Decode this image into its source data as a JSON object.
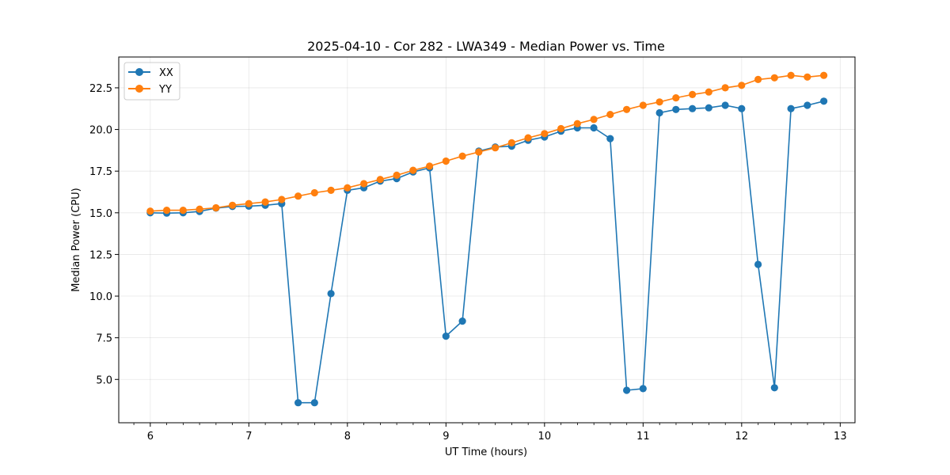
{
  "chart_data": {
    "type": "line",
    "title": "2025-04-10 - Cor 282 - LWA349 - Median Power vs. Time",
    "xlabel": "UT Time (hours)",
    "ylabel": "Median Power (CPU)",
    "xlim": [
      5.68,
      13.15
    ],
    "ylim": [
      2.4,
      24.35
    ],
    "xticks": [
      6,
      7,
      8,
      9,
      10,
      11,
      12,
      13
    ],
    "xtick_labels": [
      "6",
      "7",
      "8",
      "9",
      "10",
      "11",
      "12",
      "13"
    ],
    "xminor_step": 0.1667,
    "yticks": [
      5.0,
      7.5,
      10.0,
      12.5,
      15.0,
      17.5,
      20.0,
      22.5
    ],
    "ytick_labels": [
      "5.0",
      "7.5",
      "10.0",
      "12.5",
      "15.0",
      "17.5",
      "20.0",
      "22.5"
    ],
    "grid": true,
    "legend_position": "top-left",
    "x": [
      6.0,
      6.1667,
      6.3333,
      6.5,
      6.6667,
      6.8333,
      7.0,
      7.1667,
      7.3333,
      7.5,
      7.6667,
      7.8333,
      8.0,
      8.1667,
      8.3333,
      8.5,
      8.6667,
      8.8333,
      9.0,
      9.1667,
      9.3333,
      9.5,
      9.6667,
      9.8333,
      10.0,
      10.1667,
      10.3333,
      10.5,
      10.6667,
      10.8333,
      11.0,
      11.1667,
      11.3333,
      11.5,
      11.6667,
      11.8333,
      12.0,
      12.1667,
      12.3333,
      12.5,
      12.6667,
      12.8333
    ],
    "series": [
      {
        "name": "XX",
        "color": "#1f77b4",
        "values": [
          15.0,
          14.98,
          15.0,
          15.08,
          15.28,
          15.38,
          15.4,
          15.45,
          15.55,
          3.6,
          3.6,
          10.15,
          16.35,
          16.5,
          16.9,
          17.05,
          17.45,
          17.7,
          7.6,
          8.5,
          18.7,
          18.95,
          19.0,
          19.35,
          19.55,
          19.9,
          20.1,
          20.1,
          19.45,
          4.35,
          4.45,
          21.0,
          21.2,
          21.25,
          21.3,
          21.45,
          21.25,
          11.9,
          4.5,
          21.25,
          21.45,
          21.7
        ]
      },
      {
        "name": "YY",
        "color": "#ff7f0e",
        "values": [
          15.1,
          15.15,
          15.15,
          15.22,
          15.3,
          15.45,
          15.55,
          15.65,
          15.8,
          16.0,
          16.2,
          16.35,
          16.5,
          16.75,
          17.0,
          17.25,
          17.55,
          17.8,
          18.1,
          18.4,
          18.65,
          18.9,
          19.2,
          19.5,
          19.75,
          20.05,
          20.35,
          20.6,
          20.9,
          21.2,
          21.45,
          21.65,
          21.9,
          22.1,
          22.25,
          22.5,
          22.65,
          23.0,
          23.1,
          23.25,
          23.15,
          23.25
        ]
      }
    ]
  }
}
